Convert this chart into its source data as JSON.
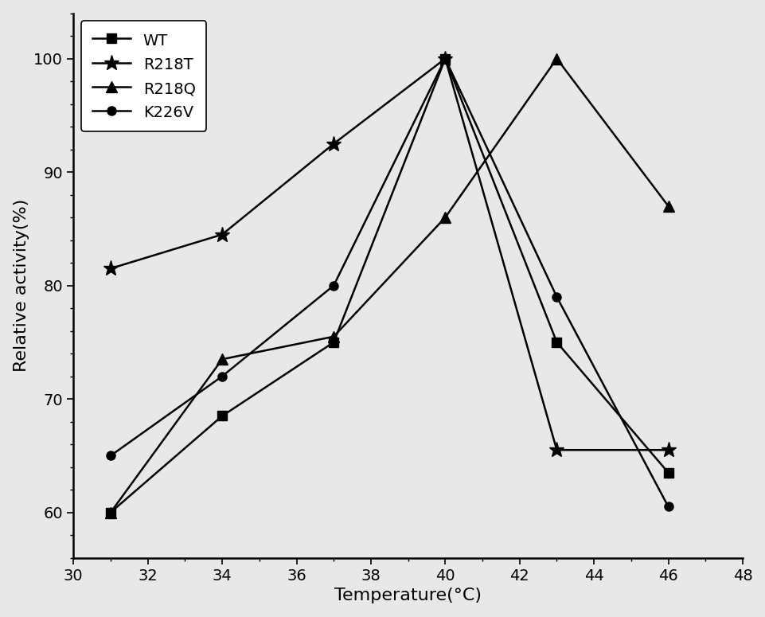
{
  "series": [
    {
      "label": "WT",
      "marker": "s",
      "x": [
        31,
        34,
        37,
        40,
        43,
        46
      ],
      "y": [
        60,
        68.5,
        75,
        100,
        75,
        63.5
      ]
    },
    {
      "label": "R218T",
      "marker": "*",
      "x": [
        31,
        34,
        37,
        40,
        43,
        46
      ],
      "y": [
        81.5,
        84.5,
        92.5,
        100,
        65.5,
        65.5
      ]
    },
    {
      "label": "R218Q",
      "marker": "^",
      "x": [
        31,
        34,
        37,
        40,
        43,
        46
      ],
      "y": [
        60,
        73.5,
        75.5,
        86,
        100,
        87
      ]
    },
    {
      "label": "K226V",
      "marker": "o",
      "x": [
        31,
        34,
        37,
        40,
        43,
        46
      ],
      "y": [
        65,
        72,
        80,
        100,
        79,
        60.5
      ]
    }
  ],
  "xlabel": "Temperature(°C)",
  "ylabel": "Relative activity(%)",
  "xlim": [
    30,
    48
  ],
  "ylim": [
    56,
    104
  ],
  "xticks": [
    30,
    32,
    34,
    36,
    38,
    40,
    42,
    44,
    46,
    48
  ],
  "yticks": [
    60,
    70,
    80,
    90,
    100
  ],
  "line_color": "#000000",
  "background_color": "#e8e8e8",
  "markersize": 8,
  "linewidth": 1.8,
  "legend_fontsize": 14,
  "axis_fontsize": 16,
  "tick_fontsize": 14
}
